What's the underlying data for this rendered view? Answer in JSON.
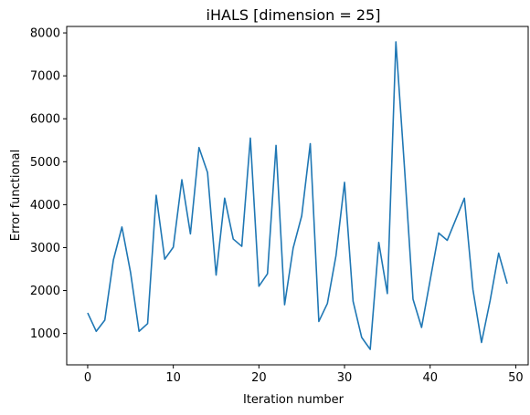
{
  "chart_data": {
    "type": "line",
    "title": "iHALS [dimension = 25]",
    "xlabel": "Iteration number",
    "ylabel": "Error functional",
    "xlim": [
      -2.45,
      51.45
    ],
    "ylim": [
      270,
      8150
    ],
    "xticks": [
      0,
      10,
      20,
      30,
      40,
      50
    ],
    "yticks": [
      1000,
      2000,
      3000,
      4000,
      5000,
      6000,
      7000,
      8000
    ],
    "grid": false,
    "color": "#1f77b4",
    "series": [
      {
        "x": [
          0,
          1,
          2,
          3,
          4,
          5,
          6,
          7,
          8,
          9,
          10,
          11,
          12,
          13,
          14,
          15,
          16,
          17,
          18,
          19,
          20,
          21,
          22,
          23,
          24,
          25,
          26,
          27,
          28,
          29,
          30,
          31,
          32,
          33,
          34,
          35,
          36,
          37,
          38,
          39,
          40,
          41,
          42,
          43,
          44,
          45,
          46,
          47,
          48,
          49
        ],
        "values": [
          1480,
          1050,
          1310,
          2710,
          3480,
          2430,
          1050,
          1230,
          4220,
          2730,
          3010,
          4580,
          3320,
          5330,
          4750,
          2360,
          4150,
          3200,
          3030,
          5550,
          2100,
          2390,
          5380,
          1670,
          2990,
          3740,
          5420,
          1280,
          1700,
          2810,
          4520,
          1750,
          910,
          630,
          3120,
          1930,
          7790,
          4870,
          1800,
          1140,
          2240,
          3340,
          3170,
          3660,
          4150,
          2020,
          790,
          1760,
          2870,
          2160
        ]
      }
    ]
  }
}
